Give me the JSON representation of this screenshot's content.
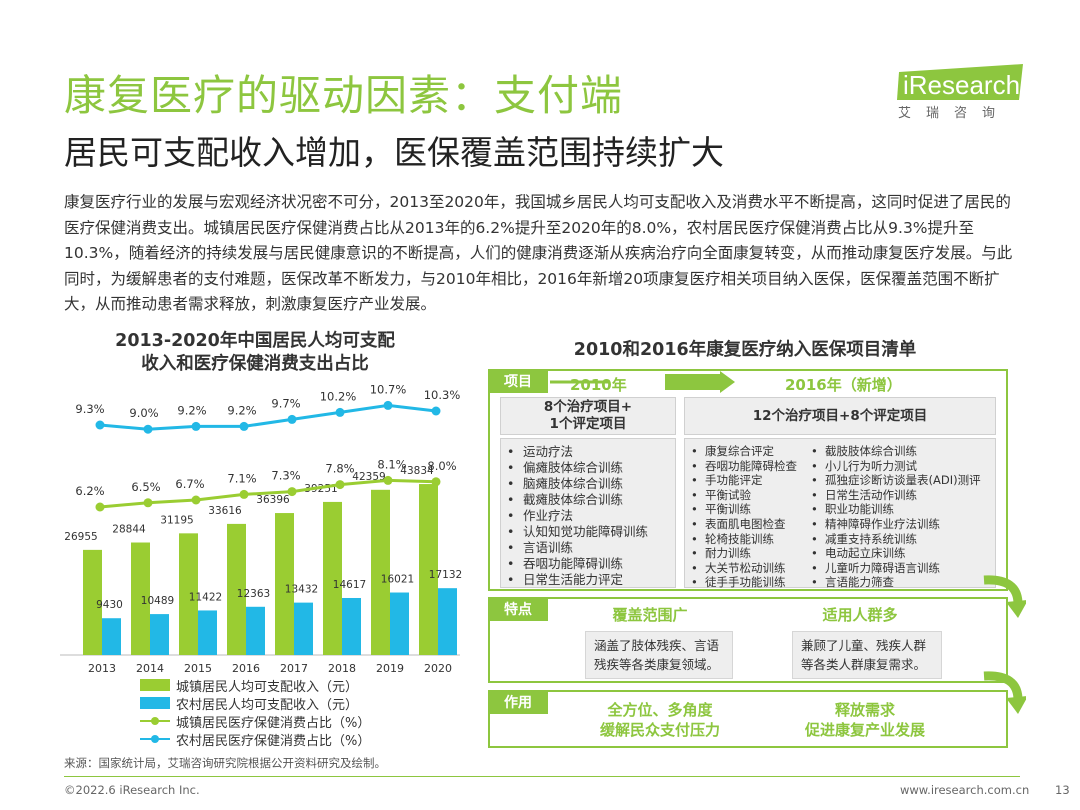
{
  "header": {
    "title": "康复医疗的驱动因素：支付端",
    "subtitle": "居民可支配收入增加，医保覆盖范围持续扩大",
    "logo_text": "iResearch",
    "logo_sub": "艾瑞咨询"
  },
  "intro": "康复医疗行业的发展与宏观经济状况密不可分，2013至2020年，我国城乡居民人均可支配收入及消费水平不断提高，这同时促进了居民的医疗保健消费支出。城镇居民医疗保健消费占比从2013年的6.2%提升至2020年的8.0%，农村居民医疗保健消费占比从9.3%提升至10.3%，随着经济的持续发展与居民健康意识的不断提高，人们的健康消费逐渐从疾病治疗向全面康复转变，从而推动康复医疗发展。与此同时，为缓解患者的支付难题，医保改革不断发力，与2010年相比，2016年新增20项康复医疗相关项目纳入医保，医保覆盖范围不断扩大，从而推动患者需求释放，刺激康复医疗产业发展。",
  "chart_data": {
    "type": "bar",
    "title": "2013-2020年中国居民人均可支配收入和医疗保健消费支出占比",
    "categories": [
      "2013",
      "2014",
      "2015",
      "2016",
      "2017",
      "2018",
      "2019",
      "2020"
    ],
    "series": [
      {
        "name": "城镇居民人均可支配收入（元）",
        "type": "bar",
        "color": "#9acd32",
        "values": [
          26955,
          28844,
          31195,
          33616,
          36396,
          39251,
          42359,
          43834
        ]
      },
      {
        "name": "农村居民人均可支配收入（元）",
        "type": "bar",
        "color": "#22b8e6",
        "values": [
          9430,
          10489,
          11422,
          12363,
          13432,
          14617,
          16021,
          17132
        ]
      },
      {
        "name": "城镇居民医疗保健消费占比（%）",
        "type": "line",
        "color": "#9acd32",
        "values": [
          6.2,
          6.5,
          6.7,
          7.1,
          7.3,
          7.8,
          8.1,
          8.0
        ],
        "labels": [
          "6.2%",
          "6.5%",
          "6.7%",
          "7.1%",
          "7.3%",
          "7.8%",
          "8.1%",
          "8.0%"
        ]
      },
      {
        "name": "农村居民医疗保健消费占比（%）",
        "type": "line",
        "color": "#22b8e6",
        "values": [
          9.3,
          9.0,
          9.2,
          9.2,
          9.7,
          10.2,
          10.7,
          10.3
        ],
        "labels": [
          "9.3%",
          "9.0%",
          "9.2%",
          "9.2%",
          "9.7%",
          "10.2%",
          "10.7%",
          "10.3%"
        ]
      }
    ],
    "grid": false,
    "legend": "bottom"
  },
  "chart_title_line1": "2013-2020年中国居民人均可支配",
  "chart_title_line2": "收入和医疗保健消费支出占比",
  "table": {
    "title": "2010和2016年康复医疗纳入医保项目清单",
    "tag_items": "项目",
    "year_2010": "2010年",
    "year_2016": "2016年（新增）",
    "head_2010": [
      "8个治疗项目+",
      "1个评定项目"
    ],
    "head_2016": "12个治疗项目+8个评定项目",
    "list_2010": [
      "运动疗法",
      "偏瘫肢体综合训练",
      "脑瘫肢体综合训练",
      "截瘫肢体综合训练",
      "作业疗法",
      "认知知觉功能障碍训练",
      "言语训练",
      "吞咽功能障碍训练",
      "日常生活能力评定"
    ],
    "list_2016_a": [
      "康复综合评定",
      "吞咽功能障碍检查",
      "手功能评定",
      "平衡试验",
      "平衡训练",
      "表面肌电图检查",
      "轮椅技能训练",
      "耐力训练",
      "大关节松动训练",
      "徒手手功能训练"
    ],
    "list_2016_b": [
      "截肢肢体综合训练",
      "小儿行为听力测试",
      "孤独症诊断访谈量表(ADI)测评",
      "日常生活动作训练",
      "职业功能训练",
      "精神障碍作业疗法训练",
      "减重支持系统训练",
      "电动起立床训练",
      "儿童听力障碍语言训练",
      "言语能力筛查"
    ],
    "tag_features": "特点",
    "feat1_title": "覆盖范围广",
    "feat1_text": [
      "涵盖了肢体残疾、言语",
      "残疾等各类康复领域。"
    ],
    "feat2_title": "适用人群多",
    "feat2_text": [
      "兼顾了儿童、残疾人群",
      "等各类人群康复需求。"
    ],
    "tag_effect": "作用",
    "eff1": [
      "全方位、多角度",
      "缓解民众支付压力"
    ],
    "eff2": [
      "释放需求",
      "促进康复产业发展"
    ]
  },
  "footer": {
    "source": "来源：国家统计局，艾瑞咨询研究院根据公开资料研究及绘制。",
    "copyright": "©2022.6 iResearch Inc.",
    "url": "www.iresearch.com.cn",
    "page": "13"
  },
  "colors": {
    "accent": "#8dc63f",
    "urban": "#9acd32",
    "rural": "#22b8e6"
  }
}
